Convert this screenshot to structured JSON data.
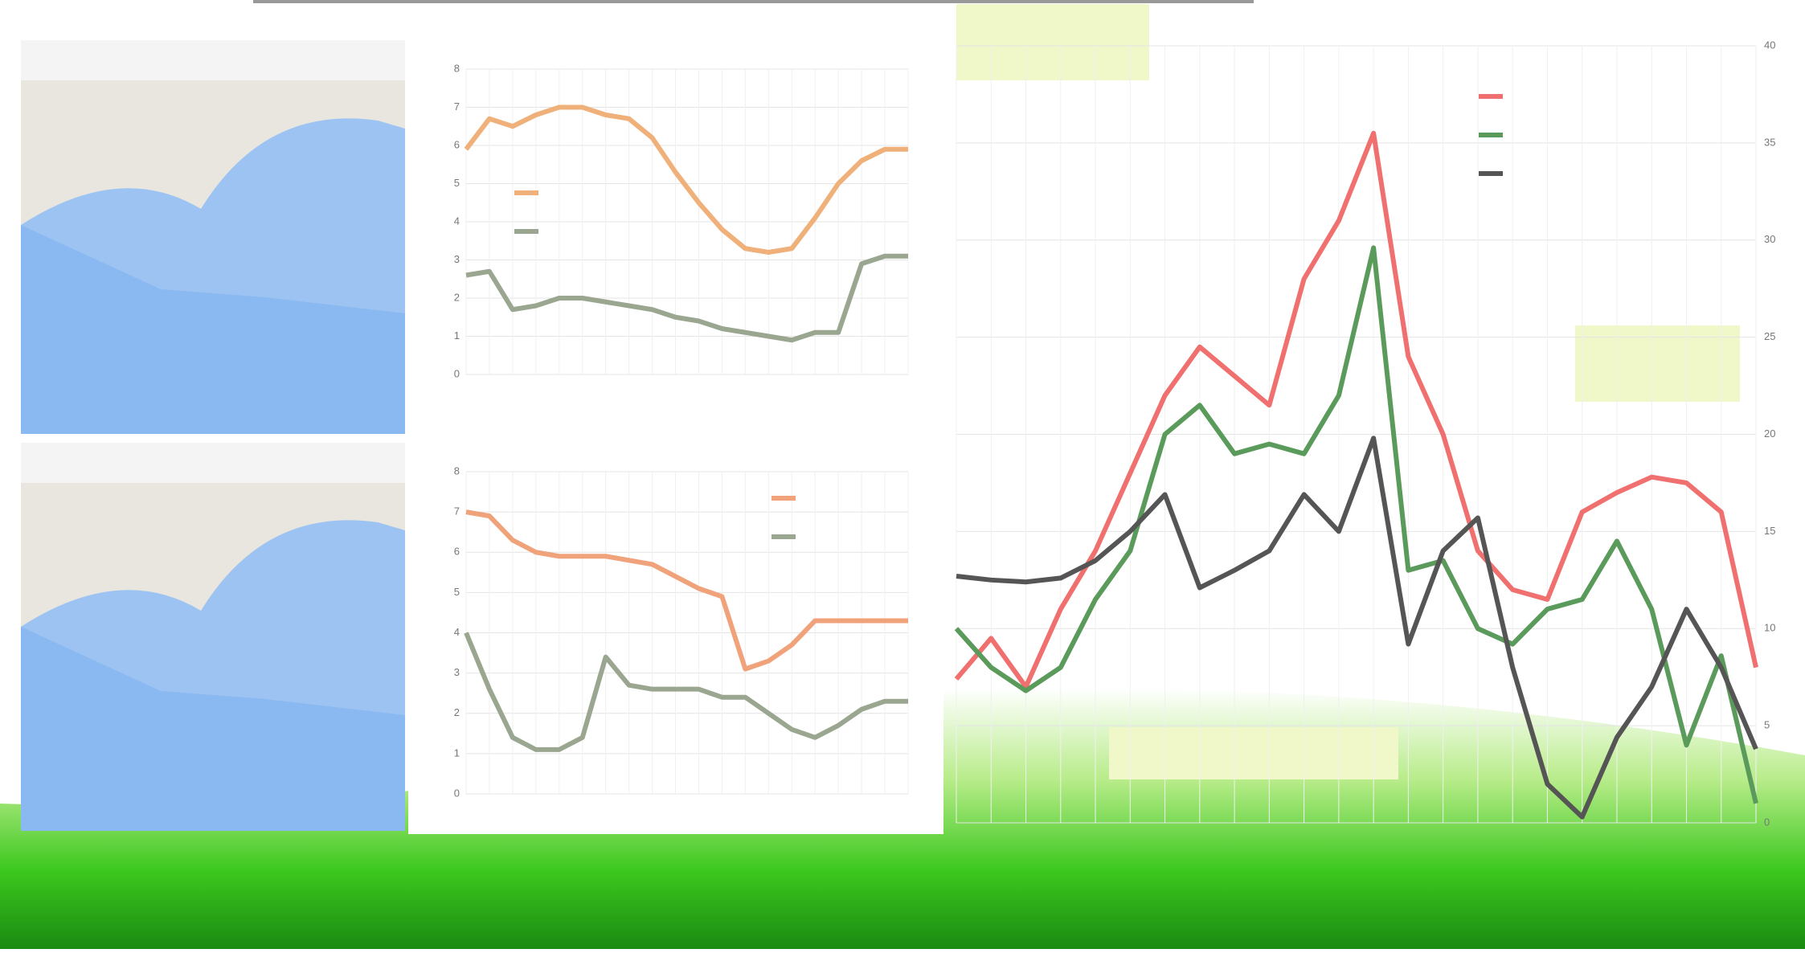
{
  "chart_data": [
    {
      "type": "line",
      "xlim": [
        1,
        20
      ],
      "x": [
        1,
        2,
        3,
        4,
        5,
        6,
        7,
        8,
        9,
        10,
        11,
        12,
        13,
        14,
        15,
        16,
        17,
        18,
        19,
        20
      ],
      "ylim": [
        0,
        8
      ],
      "yticks": [
        0,
        1,
        2,
        3,
        4,
        5,
        6,
        7,
        8
      ],
      "grid": true,
      "legend": "upper-left",
      "series": [
        {
          "color": "#f0b07a",
          "values": [
            5.9,
            6.7,
            6.5,
            6.8,
            7,
            7,
            6.8,
            6.7,
            6.2,
            5.3,
            4.5,
            3.8,
            3.3,
            3.2,
            3.3,
            4.1,
            5,
            5.6,
            5.9,
            5.9
          ]
        },
        {
          "color": "#9aa690",
          "values": [
            2.6,
            2.7,
            1.7,
            1.8,
            2,
            2,
            1.9,
            1.8,
            1.7,
            1.5,
            1.4,
            1.2,
            1.1,
            1,
            0.9,
            1.1,
            1.1,
            2.9,
            3.1,
            3.1
          ]
        }
      ]
    },
    {
      "type": "line",
      "xlim": [
        1,
        20
      ],
      "x": [
        1,
        2,
        3,
        4,
        5,
        6,
        7,
        8,
        9,
        10,
        11,
        12,
        13,
        14,
        15,
        16,
        17,
        18,
        19,
        20
      ],
      "ylim": [
        0,
        8
      ],
      "yticks": [
        0,
        1,
        2,
        3,
        4,
        5,
        6,
        7,
        8
      ],
      "grid": true,
      "legend": "upper-right",
      "series": [
        {
          "color": "#f0a27a",
          "values": [
            7,
            6.9,
            6.3,
            6,
            5.9,
            5.9,
            5.9,
            5.8,
            5.7,
            5.4,
            5.1,
            4.9,
            3.1,
            3.3,
            3.7,
            4.3,
            4.3,
            4.3,
            4.3,
            4.3
          ]
        },
        {
          "color": "#9aa690",
          "values": [
            4,
            2.6,
            1.4,
            1.1,
            1.1,
            1.4,
            3.4,
            2.7,
            2.6,
            2.6,
            2.6,
            2.4,
            2.4,
            2,
            1.6,
            1.4,
            1.7,
            2.1,
            2.3,
            2.3
          ]
        }
      ]
    },
    {
      "type": "line",
      "xlim": [
        1,
        24
      ],
      "x": [
        1,
        2,
        3,
        4,
        5,
        6,
        7,
        8,
        9,
        10,
        11,
        12,
        13,
        14,
        15,
        16,
        17,
        18,
        19,
        20,
        21,
        22,
        23,
        24
      ],
      "ylim": [
        0,
        40
      ],
      "yticks": [
        0,
        5,
        10,
        15,
        20,
        25,
        30,
        35,
        40
      ],
      "grid": true,
      "legend": "upper-right",
      "series": [
        {
          "color": "#f07070",
          "values": [
            7.4,
            9.5,
            7,
            11,
            14,
            18,
            22,
            24.5,
            23,
            21.5,
            28,
            31,
            35.5,
            24,
            20,
            14,
            12,
            11.5,
            16,
            17,
            17.8,
            17.5,
            16,
            8
          ]
        },
        {
          "color": "#5a9a5a",
          "values": [
            10,
            8,
            6.8,
            8,
            11.5,
            14,
            20,
            21.5,
            19,
            19.5,
            19,
            22,
            29.6,
            13,
            13.5,
            10,
            9.2,
            11,
            11.5,
            14.5,
            11,
            4,
            8.6,
            1
          ]
        },
        {
          "color": "#555555",
          "values": [
            12.7,
            12.5,
            12.4,
            12.6,
            13.5,
            15,
            16.9,
            12.1,
            13,
            14,
            16.9,
            15,
            19.8,
            9.2,
            14,
            15.7,
            8,
            2,
            0.3,
            4.4,
            7,
            11,
            8,
            3.8
          ]
        }
      ]
    }
  ]
}
